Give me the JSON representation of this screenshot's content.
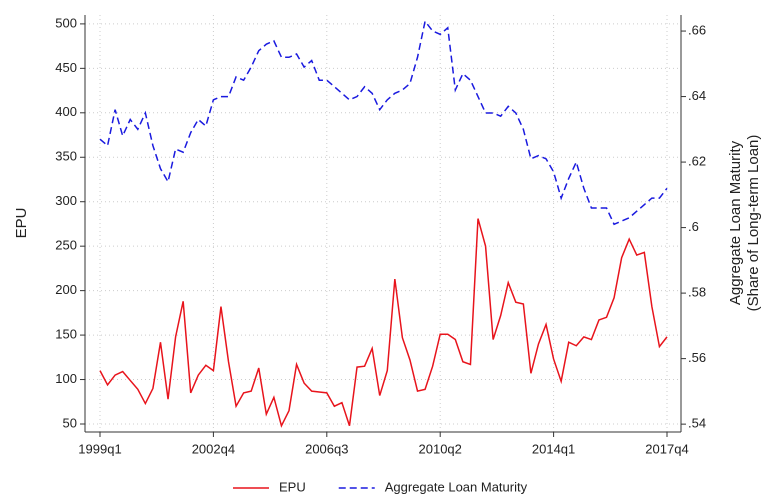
{
  "chart_data": {
    "type": "line",
    "categories": [
      "1999q1",
      null,
      null,
      null,
      null,
      null,
      null,
      null,
      null,
      null,
      null,
      null,
      null,
      null,
      null,
      "2002q4",
      null,
      null,
      null,
      null,
      null,
      null,
      null,
      null,
      null,
      null,
      null,
      null,
      null,
      null,
      "2006q3",
      null,
      null,
      null,
      null,
      null,
      null,
      null,
      null,
      null,
      null,
      null,
      null,
      null,
      null,
      "2010q2",
      null,
      null,
      null,
      null,
      null,
      null,
      null,
      null,
      null,
      null,
      null,
      null,
      null,
      null,
      "2014q1",
      null,
      null,
      null,
      null,
      null,
      null,
      null,
      null,
      null,
      null,
      null,
      null,
      null,
      null,
      "2017q4"
    ],
    "series": [
      {
        "name": "EPU",
        "color": "#e8141c",
        "dash": false,
        "values": [
          110,
          94,
          105,
          109,
          99,
          89,
          73,
          90,
          142,
          78,
          148,
          188,
          85,
          105,
          116,
          110,
          182,
          120,
          70,
          85,
          87,
          113,
          61,
          80,
          48,
          65,
          117,
          96,
          87,
          86,
          85,
          70,
          74,
          48,
          114,
          115,
          135,
          82,
          110,
          213,
          147,
          122,
          87,
          89,
          115,
          151,
          151,
          145,
          120,
          117,
          281,
          250,
          145,
          172,
          209,
          187,
          185,
          107,
          140,
          162,
          123,
          98,
          142,
          138,
          148,
          145,
          167,
          170,
          192,
          237,
          258,
          240,
          243,
          182,
          137,
          148
        ]
      },
      {
        "name": "Aggregate Loan Maturity",
        "color": "#1a1adf",
        "dash": true,
        "axis": "y2",
        "values": [
          0.627,
          0.625,
          0.636,
          0.628,
          0.633,
          0.63,
          0.635,
          0.625,
          0.618,
          0.614,
          0.624,
          0.623,
          0.629,
          0.633,
          0.631,
          0.639,
          0.64,
          0.64,
          0.646,
          0.645,
          0.649,
          0.654,
          0.656,
          0.657,
          0.652,
          0.652,
          0.653,
          0.649,
          0.651,
          0.645,
          0.645,
          0.643,
          0.641,
          0.639,
          0.64,
          0.643,
          0.641,
          0.636,
          0.639,
          0.641,
          0.642,
          0.644,
          0.652,
          0.663,
          0.66,
          0.659,
          0.661,
          0.642,
          0.647,
          0.645,
          0.64,
          0.635,
          0.635,
          0.634,
          0.637,
          0.635,
          0.63,
          0.621,
          0.622,
          0.621,
          0.617,
          0.609,
          0.615,
          0.62,
          0.612,
          0.606,
          0.606,
          0.606,
          0.601,
          0.602,
          0.603,
          0.605,
          0.607,
          0.609,
          0.609,
          0.612
        ]
      }
    ],
    "ylabel": "EPU",
    "y2label": [
      "Aggregate Loan Maturity",
      "(Share of Long-term Loan)"
    ],
    "ylim": [
      41,
      510
    ],
    "yticks": [
      50,
      100,
      150,
      200,
      250,
      300,
      350,
      400,
      450,
      500
    ],
    "y2lim": [
      0.5376,
      0.6649
    ],
    "y2ticks": [
      {
        "value": 0.54,
        "label": ".54"
      },
      {
        "value": 0.56,
        "label": ".56"
      },
      {
        "value": 0.58,
        "label": ".58"
      },
      {
        "value": 0.6,
        "label": ".6"
      },
      {
        "value": 0.62,
        "label": ".62"
      },
      {
        "value": 0.64,
        "label": ".64"
      },
      {
        "value": 0.66,
        "label": ".66"
      }
    ],
    "grid": true,
    "legend": "bottom"
  }
}
